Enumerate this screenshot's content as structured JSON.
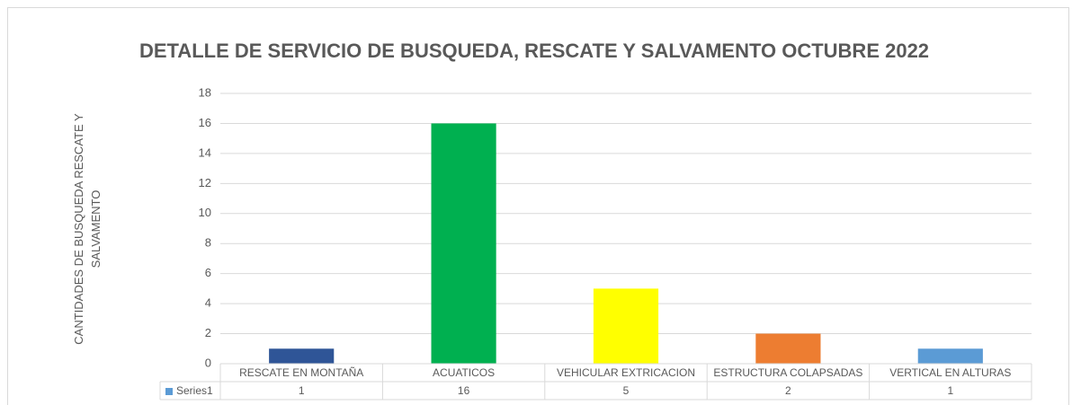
{
  "chart_data": {
    "type": "bar",
    "title": "DETALLE DE SERVICIO DE BUSQUEDA, RESCATE Y SALVAMENTO OCTUBRE 2022",
    "y_label": "CANTIDADES DE BUSQUEDA RESCATE Y SALVAMENTO",
    "categories": [
      "RESCATE EN MONTAÑA",
      "ACUATICOS",
      "VEHICULAR EXTRICACION",
      "ESTRUCTURA COLAPSADAS",
      "VERTICAL EN ALTURAS"
    ],
    "series": [
      {
        "name": "Series1",
        "color": "#5b9bd5",
        "colors": [
          "#2f5597",
          "#00b050",
          "#ffff00",
          "#ed7d31",
          "#5b9bd5"
        ],
        "values": [
          1,
          16,
          5,
          2,
          1
        ]
      }
    ],
    "ylim": [
      0,
      18
    ],
    "yticks": [
      0,
      2,
      4,
      6,
      8,
      10,
      12,
      14,
      16,
      18
    ],
    "grid": true,
    "data_table": true
  }
}
